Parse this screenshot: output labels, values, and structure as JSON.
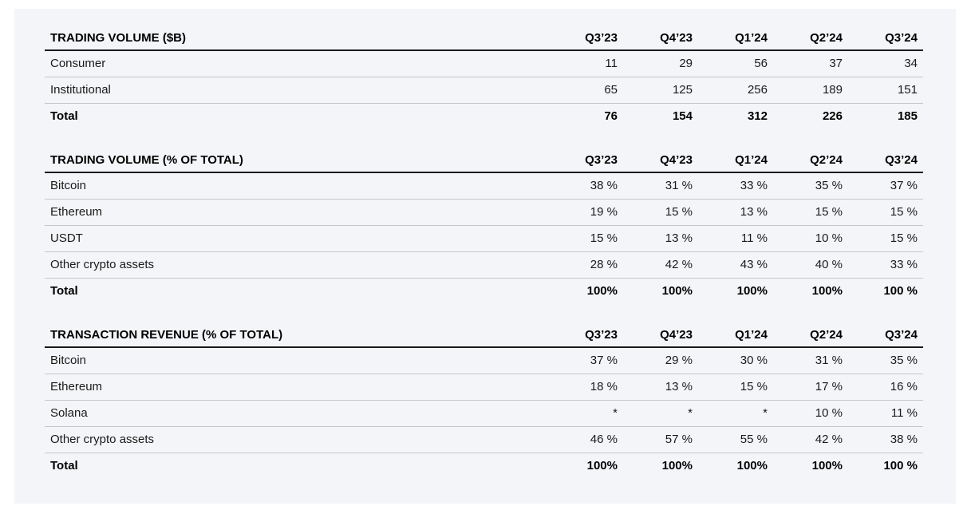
{
  "colors": {
    "page_background": "#ffffff",
    "panel_background": "#f4f5f8",
    "heavy_rule": "#1a1a1a",
    "light_rule": "#c6c6c6",
    "text": "#1a1a1a"
  },
  "columns": [
    "Q3’23",
    "Q4’23",
    "Q1’24",
    "Q2’24",
    "Q3’24"
  ],
  "sections": [
    {
      "title": "TRADING VOLUME ($B)",
      "rows": [
        {
          "label": "Consumer",
          "bold": false,
          "values": [
            "11",
            "29",
            "56",
            "37",
            "34"
          ]
        },
        {
          "label": "Institutional",
          "bold": false,
          "values": [
            "65",
            "125",
            "256",
            "189",
            "151"
          ]
        },
        {
          "label": "Total",
          "bold": true,
          "values": [
            "76",
            "154",
            "312",
            "226",
            "185"
          ]
        }
      ]
    },
    {
      "title": "TRADING VOLUME (% OF TOTAL)",
      "rows": [
        {
          "label": "Bitcoin",
          "bold": false,
          "values": [
            "38 %",
            "31 %",
            "33 %",
            "35 %",
            "37 %"
          ]
        },
        {
          "label": "Ethereum",
          "bold": false,
          "values": [
            "19 %",
            "15 %",
            "13 %",
            "15 %",
            "15 %"
          ]
        },
        {
          "label": "USDT",
          "bold": false,
          "values": [
            "15 %",
            "13 %",
            "11 %",
            "10 %",
            "15 %"
          ]
        },
        {
          "label": "Other crypto assets",
          "bold": false,
          "values": [
            "28 %",
            "42 %",
            "43 %",
            "40 %",
            "33 %"
          ]
        },
        {
          "label": "Total",
          "bold": true,
          "values": [
            "100%",
            "100%",
            "100%",
            "100%",
            "100 %"
          ]
        }
      ]
    },
    {
      "title": "TRANSACTION REVENUE (% OF TOTAL)",
      "rows": [
        {
          "label": "Bitcoin",
          "bold": false,
          "values": [
            "37 %",
            "29 %",
            "30 %",
            "31 %",
            "35 %"
          ]
        },
        {
          "label": "Ethereum",
          "bold": false,
          "values": [
            "18 %",
            "13 %",
            "15 %",
            "17 %",
            "16 %"
          ]
        },
        {
          "label": "Solana",
          "bold": false,
          "values": [
            "*",
            "*",
            "*",
            "10 %",
            "11 %"
          ]
        },
        {
          "label": "Other crypto assets",
          "bold": false,
          "values": [
            "46 %",
            "57 %",
            "55 %",
            "42 %",
            "38 %"
          ]
        },
        {
          "label": "Total",
          "bold": true,
          "values": [
            "100%",
            "100%",
            "100%",
            "100%",
            "100 %"
          ]
        }
      ]
    }
  ]
}
